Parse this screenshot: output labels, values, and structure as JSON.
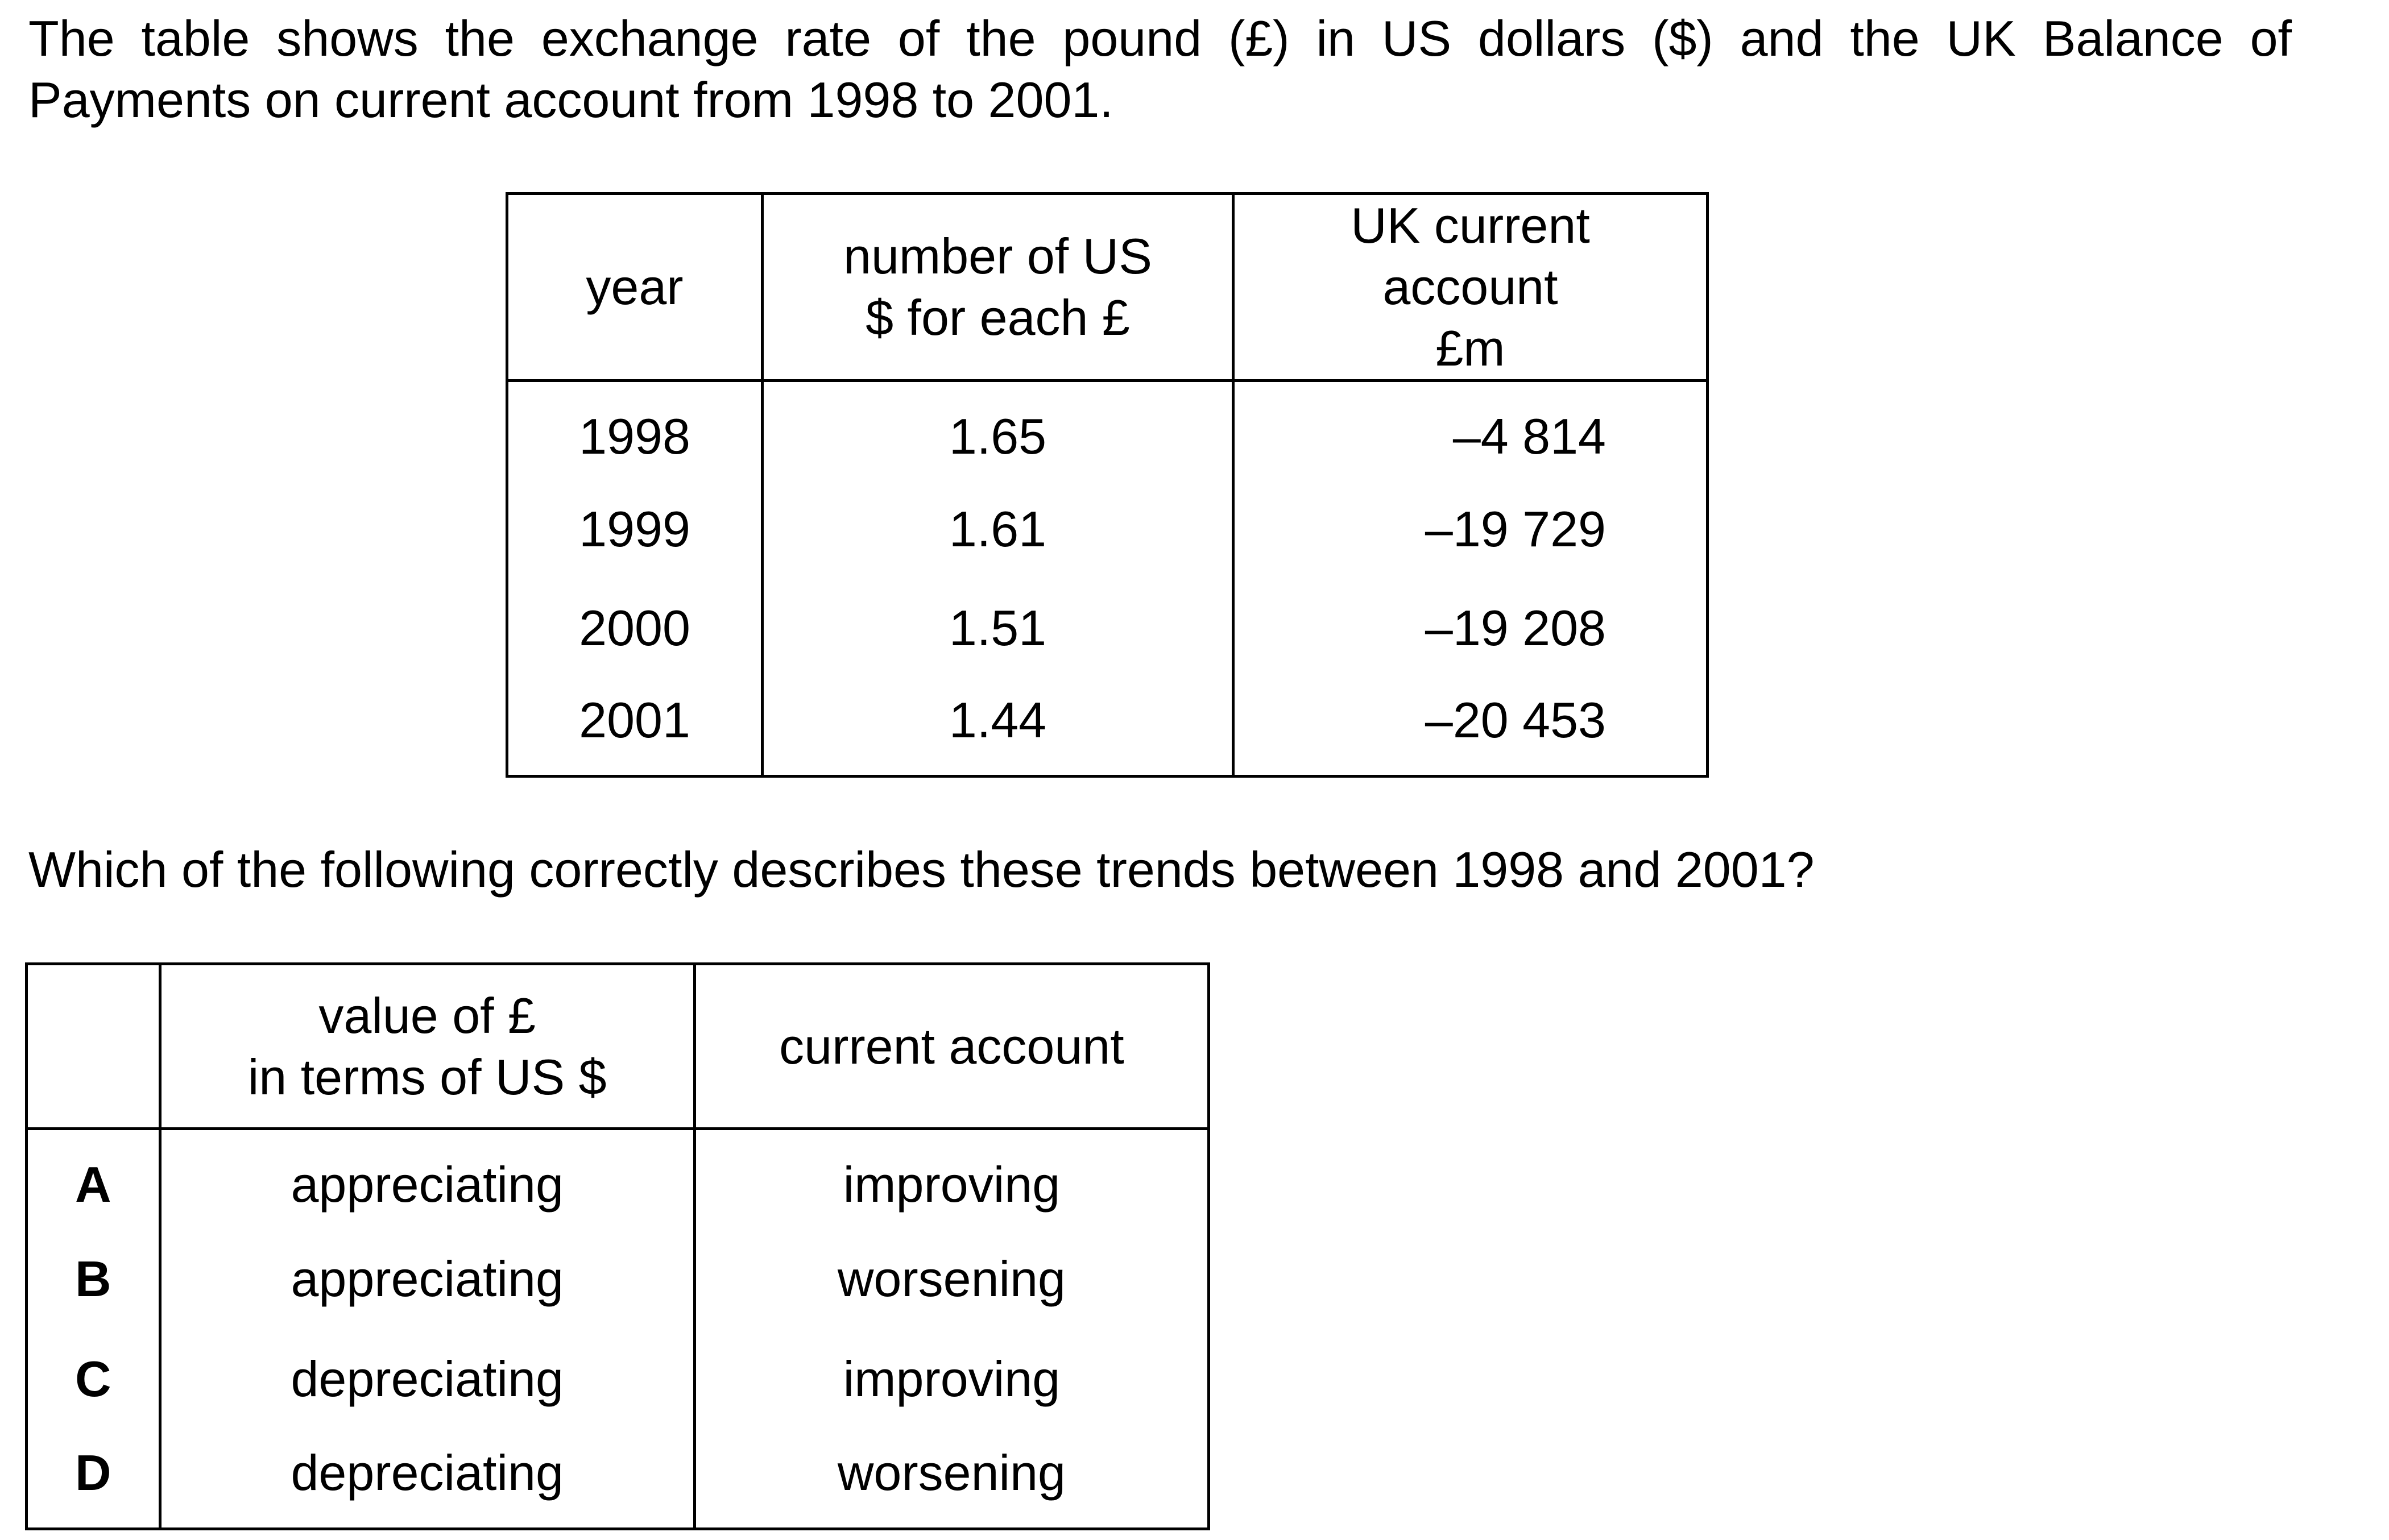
{
  "intro": "The table shows the exchange rate of the pound (£) in US dollars ($) and the UK Balance of Payments on current account from 1998 to 2001.",
  "data_table": {
    "headers": {
      "year": "year",
      "rate_line1": "number of US",
      "rate_line2": "$ for each £",
      "ca_line1": "UK current",
      "ca_line2": "account",
      "ca_line3": "£m"
    },
    "rows": [
      {
        "year": "1998",
        "rate": "1.65",
        "current_account": "–4 814"
      },
      {
        "year": "1999",
        "rate": "1.61",
        "current_account": "–19 729"
      },
      {
        "year": "2000",
        "rate": "1.51",
        "current_account": "–19 208"
      },
      {
        "year": "2001",
        "rate": "1.44",
        "current_account": "–20 453"
      }
    ]
  },
  "question": "Which of the following correctly describes these trends between 1998 and 2001?",
  "options_table": {
    "headers": {
      "value_line1": "value of £",
      "value_line2": "in terms of US $",
      "current": "current account"
    },
    "rows": [
      {
        "letter": "A",
        "value": "appreciating",
        "current": "improving"
      },
      {
        "letter": "B",
        "value": "appreciating",
        "current": "worsening"
      },
      {
        "letter": "C",
        "value": "depreciating",
        "current": "improving"
      },
      {
        "letter": "D",
        "value": "depreciating",
        "current": "worsening"
      }
    ]
  }
}
